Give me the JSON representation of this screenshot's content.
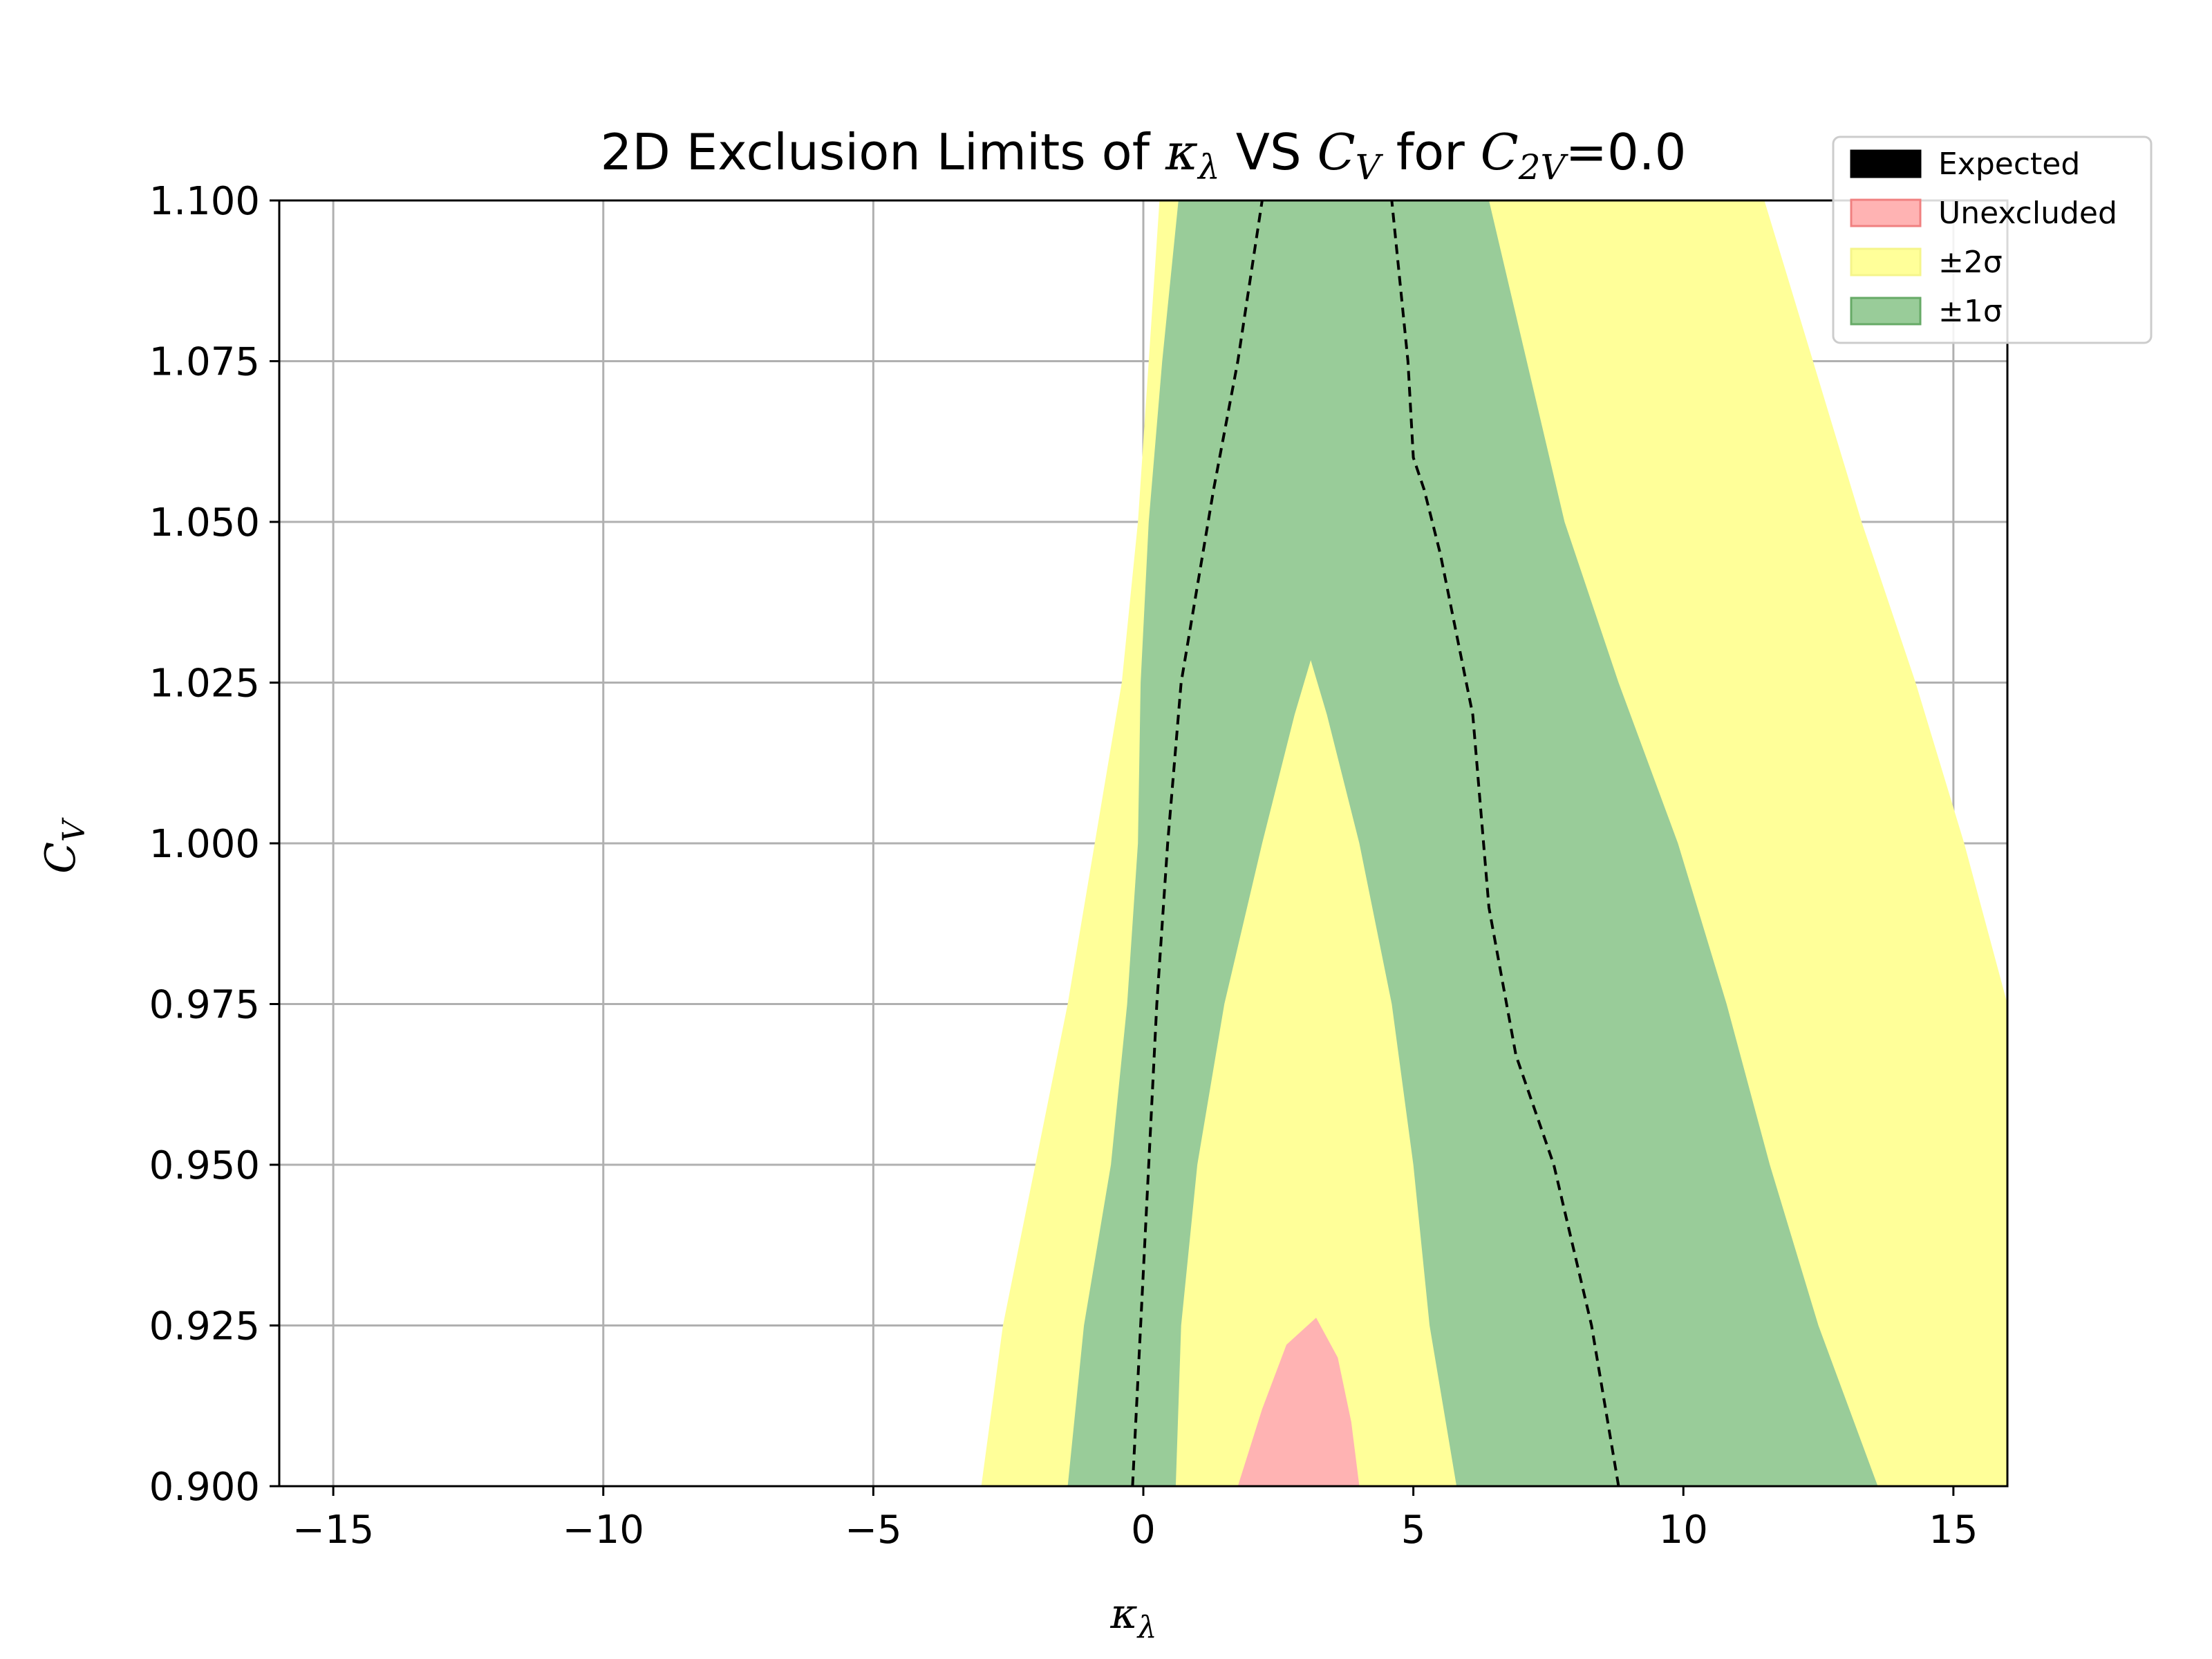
{
  "chart_data": {
    "type": "area",
    "title": "2D Exclusion Limits of κλ VS CV for C2V=0.0",
    "title_parts": {
      "prefix": "2D Exclusion Limits of ",
      "kappa": "κ",
      "kappa_sub": "λ",
      "mid": " VS ",
      "cv": "C",
      "cv_sub": "V",
      "for": " for ",
      "c2v": "C",
      "c2v_sub": "2V",
      "suffix": "=0.0"
    },
    "xlabel": "κλ",
    "xlabel_parts": {
      "main": "κ",
      "sub": "λ"
    },
    "ylabel": "CV",
    "ylabel_parts": {
      "main": "C",
      "sub": "V"
    },
    "xlim": [
      -16,
      16
    ],
    "ylim": [
      0.9,
      1.1
    ],
    "xticks": [
      -15,
      -10,
      -5,
      0,
      5,
      10,
      15
    ],
    "xtick_labels": [
      "−15",
      "−10",
      "−5",
      "0",
      "5",
      "10",
      "15"
    ],
    "yticks": [
      0.9,
      0.925,
      0.95,
      0.975,
      1.0,
      1.025,
      1.05,
      1.075,
      1.1
    ],
    "ytick_labels": [
      "0.900",
      "0.925",
      "0.950",
      "0.975",
      "1.000",
      "1.025",
      "1.050",
      "1.075",
      "1.100"
    ],
    "grid": true,
    "legend_position": "upper-right, outside plot",
    "legend": [
      {
        "label": "Expected",
        "color": "#000000",
        "key": "expected"
      },
      {
        "label": "Unexcluded",
        "color": "#ffb3b3",
        "key": "unexcluded"
      },
      {
        "label": "±2σ",
        "color": "#ffff99",
        "key": "two_sigma"
      },
      {
        "label": "±1σ",
        "color": "#99cc99",
        "key": "one_sigma"
      }
    ],
    "colors": {
      "two_sigma": "#ffff99",
      "one_sigma": "#99cc99",
      "unexcluded": "#ffb3b3",
      "expected": "#000000",
      "grid": "#b0b0b0"
    },
    "regions": {
      "two_sigma": {
        "left": [
          [
            -3.0,
            0.9
          ],
          [
            -2.6,
            0.925
          ],
          [
            -2.0,
            0.95
          ],
          [
            -1.4,
            0.975
          ],
          [
            -0.9,
            1.0
          ],
          [
            -0.4,
            1.025
          ],
          [
            -0.1,
            1.05
          ],
          [
            0.1,
            1.075
          ],
          [
            0.3,
            1.1
          ]
        ],
        "right": [
          [
            16.0,
            0.9
          ],
          [
            16.0,
            0.925
          ],
          [
            16.0,
            0.95
          ],
          [
            16.0,
            0.975
          ],
          [
            15.2,
            1.0
          ],
          [
            14.3,
            1.025
          ],
          [
            13.3,
            1.05
          ],
          [
            12.4,
            1.075
          ],
          [
            11.5,
            1.1
          ]
        ]
      },
      "one_sigma": {
        "left": [
          [
            -1.4,
            0.9
          ],
          [
            -1.1,
            0.925
          ],
          [
            -0.6,
            0.95
          ],
          [
            -0.3,
            0.975
          ],
          [
            -0.1,
            1.0
          ],
          [
            -0.05,
            1.025
          ],
          [
            0.1,
            1.05
          ],
          [
            0.35,
            1.075
          ],
          [
            0.65,
            1.1
          ]
        ],
        "right": [
          [
            13.6,
            0.9
          ],
          [
            12.5,
            0.925
          ],
          [
            11.6,
            0.95
          ],
          [
            10.8,
            0.975
          ],
          [
            9.9,
            1.0
          ],
          [
            8.8,
            1.025
          ],
          [
            7.8,
            1.05
          ],
          [
            7.1,
            1.075
          ],
          [
            6.4,
            1.1
          ]
        ],
        "inner_hole": [
          [
            0.6,
            0.9
          ],
          [
            0.7,
            0.925
          ],
          [
            1.0,
            0.95
          ],
          [
            1.5,
            0.975
          ],
          [
            2.2,
            1.0
          ],
          [
            2.8,
            1.02
          ],
          [
            3.1,
            1.0285
          ],
          [
            3.4,
            1.02
          ],
          [
            4.0,
            1.0
          ],
          [
            4.6,
            0.975
          ],
          [
            5.0,
            0.95
          ],
          [
            5.3,
            0.925
          ],
          [
            5.8,
            0.9
          ]
        ]
      },
      "unexcluded": {
        "boundary": [
          [
            1.75,
            0.9
          ],
          [
            2.2,
            0.912
          ],
          [
            2.65,
            0.922
          ],
          [
            3.2,
            0.9262
          ],
          [
            3.6,
            0.92
          ],
          [
            3.85,
            0.91
          ],
          [
            4.0,
            0.9
          ]
        ]
      }
    },
    "series": [
      {
        "key": "expected_left",
        "x": [
          -0.2,
          -0.05,
          0.1,
          0.25,
          0.45,
          0.7,
          0.9,
          1.3,
          1.75,
          2.2
        ],
        "y": [
          0.9,
          0.925,
          0.95,
          0.975,
          1.0,
          1.025,
          1.035,
          1.055,
          1.075,
          1.1
        ]
      },
      {
        "key": "expected_right",
        "x": [
          8.8,
          8.3,
          7.6,
          6.9,
          6.4,
          6.1,
          5.5,
          5.2,
          5.0,
          4.9,
          4.6
        ],
        "y": [
          0.9,
          0.925,
          0.95,
          0.967,
          0.99,
          1.02,
          1.045,
          1.055,
          1.06,
          1.075,
          1.1
        ]
      }
    ]
  }
}
